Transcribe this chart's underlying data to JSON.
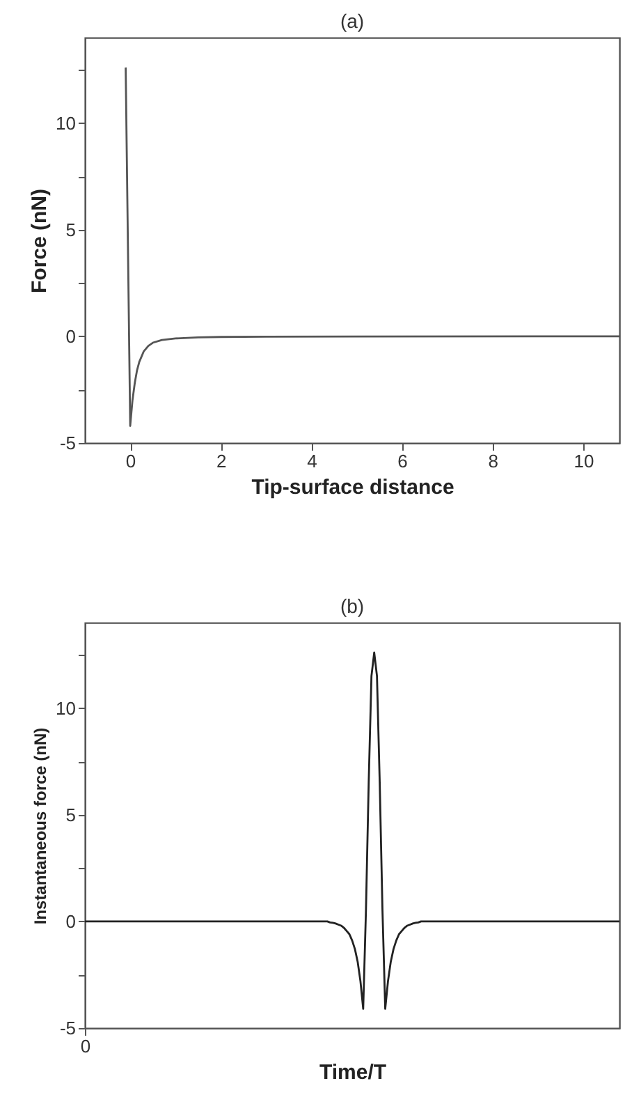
{
  "chart_data": [
    {
      "type": "line",
      "title": "(a)",
      "xlabel": "Tip-surface distance",
      "ylabel": "Force (nN)",
      "color": "#555555",
      "x": [
        -0.1,
        0,
        0.05,
        0.1,
        0.15,
        0.2,
        0.3,
        0.4,
        0.5,
        0.7,
        1,
        1.5,
        2,
        3,
        5,
        10.8
      ],
      "values": [
        12.6,
        -4.2,
        -3.0,
        -2.2,
        -1.6,
        -1.2,
        -0.7,
        -0.45,
        -0.3,
        -0.17,
        -0.1,
        -0.05,
        -0.03,
        -0.02,
        -0.01,
        0
      ],
      "xlim": [
        -1,
        10.8
      ],
      "xticks": [
        0,
        2,
        4,
        6,
        8,
        10
      ],
      "ylim": [
        -5,
        14
      ],
      "yticks": [
        -5,
        {
          "value": -2.5,
          "label": null
        },
        0,
        {
          "value": 2.5,
          "label": null
        },
        5,
        {
          "value": 7.5,
          "label": null
        },
        10,
        {
          "value": 12.5,
          "label": null
        }
      ]
    },
    {
      "type": "line",
      "title": "(b)",
      "xlabel": "Time/T",
      "ylabel": "Instantaneous force (nN)",
      "color": "#222222",
      "categories": [
        "0",
        null,
        null,
        null,
        null,
        null,
        null,
        null,
        null,
        null,
        null,
        null,
        null,
        null,
        null,
        null,
        null,
        null,
        null,
        null,
        null,
        null,
        null,
        null,
        null,
        null,
        null,
        null,
        null,
        null,
        null,
        null,
        null,
        null,
        null,
        null,
        null,
        null,
        null,
        null,
        null,
        null,
        null,
        null,
        null,
        null,
        null,
        null,
        null,
        null,
        null,
        null,
        null,
        null,
        null,
        null,
        null,
        null,
        null,
        null,
        null,
        null,
        null,
        null,
        null,
        null,
        null,
        null,
        null,
        null,
        null,
        null,
        null,
        null,
        null,
        null,
        null,
        null,
        null,
        null,
        null,
        null,
        null,
        null,
        null,
        null,
        null,
        null,
        null,
        null,
        null,
        null,
        null,
        null,
        null,
        null,
        null,
        null,
        null,
        null,
        null,
        null,
        null,
        null,
        null,
        null,
        null,
        null,
        null,
        null,
        null,
        null,
        null,
        null,
        null,
        null,
        null,
        null,
        null,
        null,
        null,
        null,
        null,
        null,
        null,
        null,
        null,
        null,
        null,
        null,
        null,
        null,
        null,
        null,
        null,
        null,
        null,
        null,
        null,
        null,
        null,
        null,
        null,
        null,
        null,
        null,
        null,
        null,
        null,
        null,
        null,
        null,
        null,
        null,
        null,
        null,
        null,
        null,
        null,
        null,
        null,
        null,
        null,
        null,
        null,
        null,
        null,
        null,
        null,
        null,
        null,
        null,
        null,
        null,
        null,
        null,
        null,
        null,
        null,
        null,
        null,
        null,
        null,
        null,
        null,
        null,
        null,
        null,
        null,
        null,
        null,
        null,
        null,
        null,
        null
      ],
      "values": [
        0,
        0,
        0,
        0,
        0,
        0,
        0,
        0,
        0,
        0,
        0,
        0,
        0,
        0,
        0,
        0,
        0,
        0,
        0,
        0,
        0,
        0,
        0,
        0,
        0,
        0,
        0,
        0,
        0,
        0,
        0,
        0,
        0,
        0,
        0,
        0,
        0,
        0,
        0,
        0,
        0,
        0,
        0,
        0,
        0,
        0,
        0,
        0,
        0,
        0,
        0,
        0,
        0,
        0,
        0,
        0,
        0,
        0,
        0,
        0,
        0,
        0,
        0,
        0,
        0,
        0,
        0,
        0,
        0,
        0,
        0,
        0,
        0,
        0,
        0,
        0,
        0,
        0,
        0,
        0,
        0,
        0,
        0,
        0,
        0,
        0,
        0,
        0,
        0,
        -0.05,
        -0.07,
        -0.1,
        -0.15,
        -0.2,
        -0.3,
        -0.45,
        -0.6,
        -0.9,
        -1.3,
        -1.9,
        -2.8,
        -4.1,
        0.5,
        6.5,
        11.5,
        12.6,
        11.5,
        6.5,
        0.5,
        -4.1,
        -2.8,
        -1.9,
        -1.3,
        -0.9,
        -0.6,
        -0.45,
        -0.3,
        -0.2,
        -0.15,
        -0.1,
        -0.07,
        -0.05,
        0,
        0,
        0,
        0,
        0,
        0,
        0,
        0,
        0,
        0,
        0,
        0,
        0,
        0,
        0,
        0,
        0,
        0,
        0,
        0,
        0,
        0,
        0,
        0,
        0,
        0,
        0,
        0,
        0,
        0,
        0,
        0,
        0,
        0,
        0,
        0,
        0,
        0,
        0,
        0,
        0,
        0,
        0,
        0,
        0,
        0,
        0,
        0,
        0,
        0,
        0,
        0,
        0,
        0,
        0,
        0,
        0,
        0,
        0,
        0,
        0,
        0,
        0,
        0,
        0,
        0,
        0,
        0,
        0,
        0,
        0,
        0,
        0
      ],
      "ylim": [
        -5,
        14
      ],
      "yticks": [
        -5,
        {
          "value": -2.5,
          "label": null
        },
        0,
        {
          "value": 2.5,
          "label": null
        },
        5,
        {
          "value": 7.5,
          "label": null
        },
        10,
        {
          "value": 12.5,
          "label": null
        }
      ]
    }
  ]
}
